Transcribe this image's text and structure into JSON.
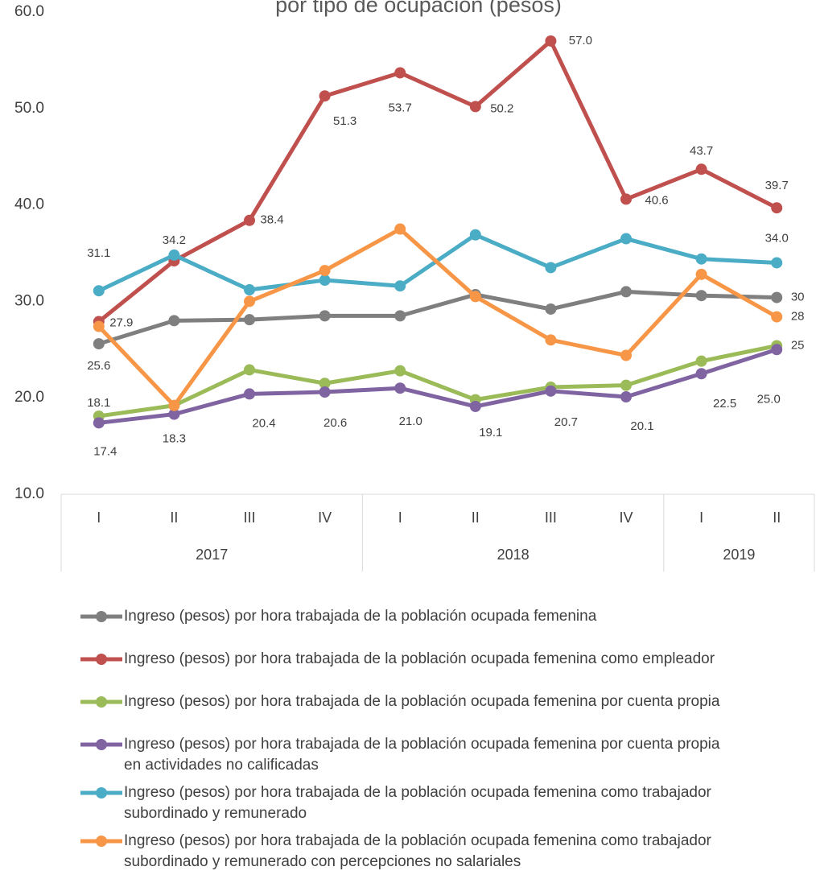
{
  "chart_data": {
    "type": "line",
    "title": "por tipo de ocupación (pesos)",
    "categories": [
      "I",
      "II",
      "III",
      "IV",
      "I",
      "II",
      "III",
      "IV",
      "I",
      "II"
    ],
    "groups": [
      {
        "label": "2017",
        "span": 4
      },
      {
        "label": "2018",
        "span": 4
      },
      {
        "label": "2019",
        "span": 2
      }
    ],
    "ylim": [
      10,
      60
    ],
    "yticks": [
      {
        "value": 10,
        "label": "10.0"
      },
      {
        "value": 20,
        "label": "20.0"
      },
      {
        "value": 30,
        "label": "30.0"
      },
      {
        "value": 40,
        "label": "40.0"
      },
      {
        "value": 50,
        "label": "50.0"
      },
      {
        "value": 60,
        "label": "60.0"
      }
    ],
    "grid": false,
    "legend": "bottom",
    "series": [
      {
        "name": "Ingreso (pesos) por hora trabajada de la población ocupada femenina",
        "color": "#7f7f7f",
        "values": [
          25.6,
          28.0,
          28.1,
          28.5,
          28.5,
          30.7,
          29.2,
          31.0,
          30.6,
          30.4
        ],
        "value_labels": [
          "25.6",
          null,
          null,
          null,
          null,
          null,
          null,
          null,
          null,
          "30"
        ]
      },
      {
        "name": "Ingreso (pesos) por hora trabajada de la población ocupada femenina como empleador",
        "color": "#c0504d",
        "values": [
          27.9,
          34.2,
          38.4,
          51.3,
          53.7,
          50.2,
          57.0,
          40.6,
          43.7,
          39.7
        ],
        "value_labels": [
          "27.9",
          "34.2",
          "38.4",
          "51.3",
          "53.7",
          "50.2",
          "57.0",
          "40.6",
          "43.7",
          "39.7"
        ]
      },
      {
        "name": "Ingreso (pesos) por hora trabajada de la población ocupada femenina por cuenta propia",
        "color": "#9bbb59",
        "values": [
          18.1,
          19.2,
          22.9,
          21.5,
          22.8,
          19.8,
          21.1,
          21.3,
          23.8,
          25.4
        ],
        "value_labels": [
          "18.1",
          null,
          null,
          null,
          null,
          null,
          null,
          null,
          null,
          "25"
        ]
      },
      {
        "name": "Ingreso (pesos) por hora trabajada de la población ocupada femenina por cuenta propia en actividades no calificadas",
        "color": "#8064a2",
        "values": [
          17.4,
          18.3,
          20.4,
          20.6,
          21.0,
          19.1,
          20.7,
          20.1,
          22.5,
          25.0
        ],
        "value_labels": [
          "17.4",
          "18.3",
          "20.4",
          "20.6",
          "21.0",
          "19.1",
          "20.7",
          "20.1",
          "22.5",
          "25.0"
        ]
      },
      {
        "name": "Ingreso (pesos) por hora trabajada de la población ocupada femenina como trabajador  subordinado y remunerado",
        "color": "#4bacc6",
        "values": [
          31.1,
          34.8,
          31.2,
          32.2,
          31.6,
          36.9,
          33.5,
          36.5,
          34.4,
          34.0
        ],
        "value_labels": [
          "31.1",
          null,
          null,
          null,
          null,
          null,
          null,
          null,
          null,
          "34.0"
        ]
      },
      {
        "name": "Ingreso (pesos) por hora trabajada de la población ocupada femenina como trabajador  subordinado y remunerado con percepciones no salariales",
        "color": "#f79646",
        "values": [
          27.4,
          19.2,
          30.0,
          33.2,
          37.5,
          30.5,
          26.0,
          24.4,
          32.8,
          28.4
        ],
        "value_labels": [
          null,
          null,
          null,
          null,
          null,
          null,
          null,
          null,
          null,
          "28"
        ]
      }
    ]
  }
}
